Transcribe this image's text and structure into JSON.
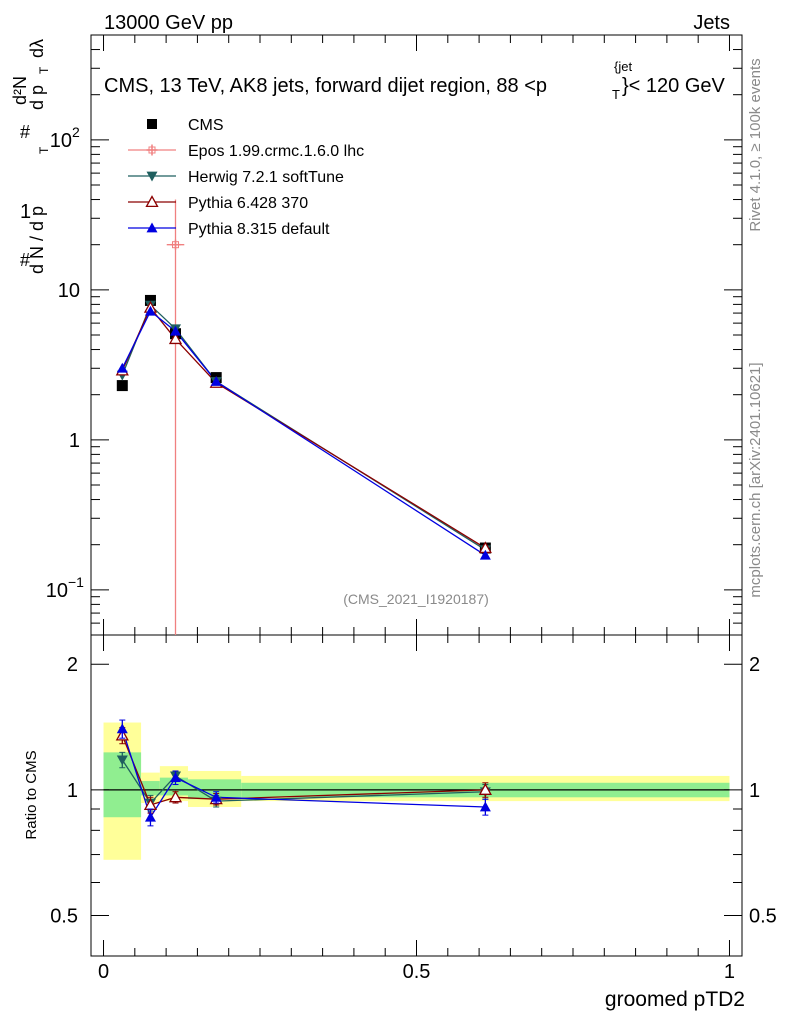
{
  "header": {
    "energy_label": "13000 GeV pp",
    "category_label": "Jets"
  },
  "side_labels": {
    "rivet": "Rivet 4.1.0, ≥ 100k events",
    "mcplots": "mcplots.cern.ch [arXiv:2401.10621]"
  },
  "colors": {
    "cms": "#000000",
    "epos": "#f08080",
    "herwig": "#1f5f5f",
    "pythia6": "#8b0000",
    "pythia8": "#0000e0",
    "band_outer": "#ffff99",
    "band_inner": "#90ee90"
  },
  "chart_data": [
    {
      "type": "line",
      "panel": "main",
      "title": "CMS, 13 TeV, AK8 jets, forward dijet region, 88 < p_T^{jet} < 120 GeV",
      "title_parts": {
        "main": "CMS, 13 TeV, AK8 jets, forward dijet region, 88 <p",
        "sub": "T",
        "sup": "{jet",
        "end": "}< 120 GeV"
      },
      "ylabel": "1/(dN/dp_T) d²N/(dp_T dλ)",
      "ylabel_parts": {
        "hash": "#",
        "one": "1",
        "dn": "d N / d p",
        "t": "T",
        "d2n": "d²N",
        "dpt": "d p",
        "dl": "dλ"
      },
      "yscale": "log",
      "ylim": [
        0.05,
        500
      ],
      "xlim": [
        -0.02,
        1.02
      ],
      "yticks": [
        {
          "value": 0.1,
          "base": "10",
          "exp": "−1"
        },
        {
          "value": 1,
          "base": "1",
          "exp": ""
        },
        {
          "value": 10,
          "base": "10",
          "exp": ""
        },
        {
          "value": 100,
          "base": "10",
          "exp": "2"
        }
      ],
      "watermark": "(CMS_2021_I1920187)",
      "legend_position": "top-left",
      "series": [
        {
          "name": "CMS",
          "key": "cms",
          "marker": "square",
          "x": [
            0.03,
            0.075,
            0.115,
            0.18,
            0.61
          ],
          "y": [
            2.3,
            8.5,
            5.1,
            2.6,
            0.19
          ]
        },
        {
          "name": "Epos 1.99.crmc.1.6.0 lhc",
          "key": "epos",
          "marker": "cross",
          "x": [
            0.115
          ],
          "y": [
            20
          ],
          "yerr_low": [
            19.95
          ],
          "yerr_high": [
            20
          ],
          "xerr": [
            0.014
          ]
        },
        {
          "name": "Herwig 7.2.1 softTune",
          "key": "herwig",
          "marker": "triangle-down",
          "x": [
            0.03,
            0.075,
            0.115,
            0.18,
            0.61
          ],
          "y": [
            2.7,
            7.9,
            5.5,
            2.45,
            0.185
          ]
        },
        {
          "name": "Pythia 6.428 370",
          "key": "pythia6",
          "marker": "triangle-up-open",
          "x": [
            0.03,
            0.075,
            0.115,
            0.18,
            0.61
          ],
          "y": [
            2.9,
            7.6,
            4.7,
            2.4,
            0.19
          ]
        },
        {
          "name": "Pythia 8.315 default",
          "key": "pythia8",
          "marker": "triangle-up",
          "x": [
            0.03,
            0.075,
            0.115,
            0.18,
            0.61
          ],
          "y": [
            3.0,
            7.2,
            5.3,
            2.45,
            0.17
          ]
        }
      ]
    },
    {
      "type": "line",
      "panel": "ratio",
      "ylabel": "Ratio to CMS",
      "xlabel": "groomed pTD2",
      "yscale": "log",
      "ylim": [
        0.4,
        2.35
      ],
      "xlim": [
        -0.02,
        1.02
      ],
      "yticks": [
        0.5,
        1,
        2
      ],
      "ytick_labels": [
        "0.5",
        "1",
        "2"
      ],
      "xticks": [
        0,
        0.5,
        1
      ],
      "xtick_labels": [
        "0",
        "0.5",
        "1"
      ],
      "bins": [
        0,
        0.06,
        0.09,
        0.135,
        0.22,
        1.0
      ],
      "band_outer": [
        [
          0.68,
          1.45
        ],
        [
          0.93,
          1.1
        ],
        [
          0.94,
          1.14
        ],
        [
          0.91,
          1.11
        ],
        [
          0.94,
          1.08
        ]
      ],
      "band_inner": [
        [
          0.86,
          1.23
        ],
        [
          0.97,
          1.05
        ],
        [
          0.97,
          1.07
        ],
        [
          0.95,
          1.06
        ],
        [
          0.96,
          1.04
        ]
      ],
      "series": [
        {
          "key": "herwig",
          "marker": "triangle-down",
          "x": [
            0.03,
            0.075,
            0.115,
            0.18,
            0.61
          ],
          "y": [
            1.18,
            0.93,
            1.08,
            0.94,
            0.99
          ],
          "err": [
            0.05,
            0.04,
            0.03,
            0.03,
            0.04
          ]
        },
        {
          "key": "pythia6",
          "marker": "triangle-up-open",
          "x": [
            0.03,
            0.075,
            0.115,
            0.18,
            0.61
          ],
          "y": [
            1.35,
            0.92,
            0.96,
            0.95,
            1.0
          ],
          "err": [
            0.06,
            0.04,
            0.03,
            0.03,
            0.04
          ]
        },
        {
          "key": "pythia8",
          "marker": "triangle-up",
          "x": [
            0.03,
            0.075,
            0.115,
            0.18,
            0.61
          ],
          "y": [
            1.4,
            0.86,
            1.07,
            0.96,
            0.91
          ],
          "err": [
            0.07,
            0.04,
            0.04,
            0.03,
            0.04
          ]
        }
      ]
    }
  ]
}
